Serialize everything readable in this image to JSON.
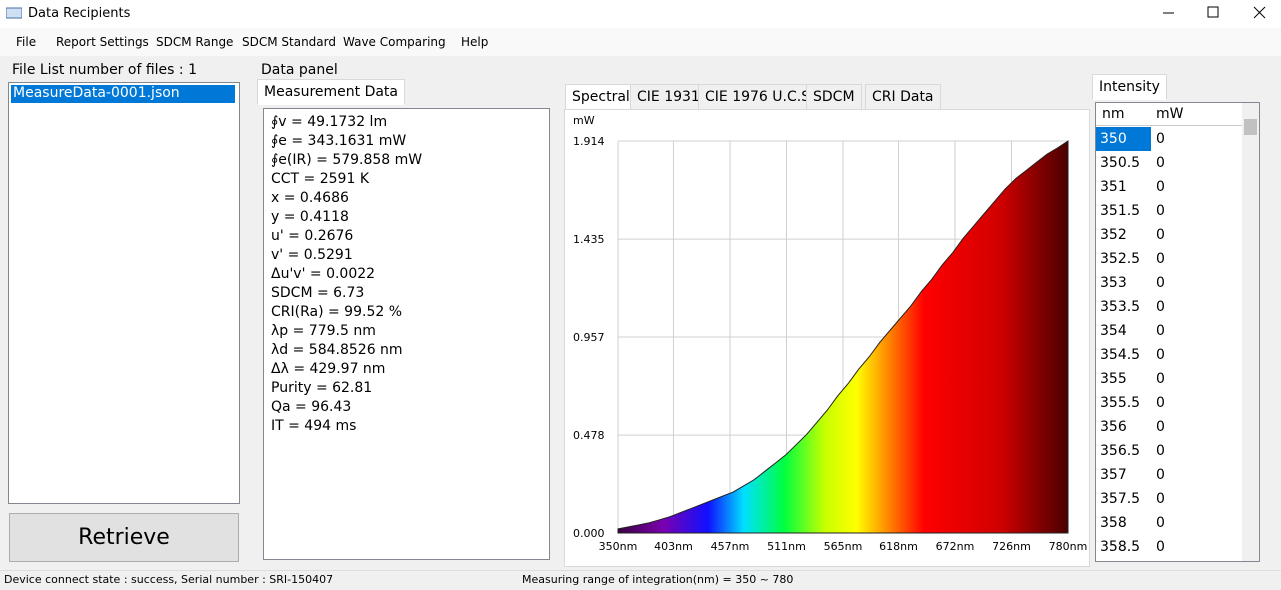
{
  "window": {
    "title": "Data Recipients"
  },
  "menu": [
    "File",
    "Report Settings",
    "SDCM Range",
    "SDCM Standard",
    "Wave Comparing",
    "Help"
  ],
  "file_list": {
    "title": "File List number of files : 1",
    "items": [
      "MeasureData-0001.json"
    ],
    "button": "Retrieve"
  },
  "data_panel": {
    "title": "Data panel",
    "tab": "Measurement Data",
    "lines": [
      "∮v = 49.1732 lm",
      "∮e = 343.1631 mW",
      "∮e(IR) = 579.858 mW",
      "CCT = 2591 K",
      "x = 0.4686",
      "y = 0.4118",
      "u' = 0.2676",
      "v' = 0.5291",
      "Δu'v' = 0.0022",
      "SDCM = 6.73",
      "CRI(Ra) = 99.52 %",
      "λp = 779.5 nm",
      "λd = 584.8526 nm",
      "Δλ = 429.97 nm",
      "Purity = 62.81",
      "Qa = 96.43",
      "IT = 494 ms"
    ]
  },
  "chart_tabs": [
    "Spectral",
    "CIE 1931",
    "CIE 1976 U.C.S",
    "SDCM",
    "CRI Data"
  ],
  "chart_data": {
    "type": "area",
    "y_label": "mW",
    "x": [
      350,
      360,
      370,
      380,
      390,
      400,
      410,
      420,
      430,
      440,
      450,
      460,
      470,
      480,
      490,
      500,
      510,
      520,
      530,
      540,
      550,
      560,
      570,
      580,
      590,
      600,
      610,
      620,
      630,
      640,
      650,
      660,
      670,
      680,
      690,
      700,
      710,
      720,
      730,
      740,
      750,
      760,
      770,
      780
    ],
    "values": [
      0.02,
      0.03,
      0.04,
      0.05,
      0.065,
      0.08,
      0.1,
      0.12,
      0.14,
      0.16,
      0.18,
      0.2,
      0.23,
      0.26,
      0.3,
      0.34,
      0.38,
      0.43,
      0.48,
      0.54,
      0.6,
      0.67,
      0.73,
      0.8,
      0.86,
      0.93,
      0.99,
      1.05,
      1.11,
      1.18,
      1.24,
      1.31,
      1.37,
      1.44,
      1.5,
      1.56,
      1.62,
      1.68,
      1.73,
      1.77,
      1.81,
      1.85,
      1.88,
      1.914
    ],
    "xlim": [
      350,
      780
    ],
    "ylim": [
      0,
      1.914
    ],
    "xticks": [
      {
        "value": 350,
        "label": "350nm"
      },
      {
        "value": 403,
        "label": "403nm"
      },
      {
        "value": 457,
        "label": "457nm"
      },
      {
        "value": 511,
        "label": "511nm"
      },
      {
        "value": 565,
        "label": "565nm"
      },
      {
        "value": 618,
        "label": "618nm"
      },
      {
        "value": 672,
        "label": "672nm"
      },
      {
        "value": 726,
        "label": "726nm"
      },
      {
        "value": 780,
        "label": "780nm"
      }
    ],
    "yticks": [
      {
        "value": 0,
        "label": "0.000"
      },
      0.478,
      0.957,
      1.435,
      1.914
    ],
    "grid": true
  },
  "intensity": {
    "tab": "Intensity",
    "columns": [
      "nm",
      "mW"
    ],
    "rows": [
      [
        350,
        0
      ],
      [
        350.5,
        0
      ],
      [
        351,
        0
      ],
      [
        351.5,
        0
      ],
      [
        352,
        0
      ],
      [
        352.5,
        0
      ],
      [
        353,
        0
      ],
      [
        353.5,
        0
      ],
      [
        354,
        0
      ],
      [
        354.5,
        0
      ],
      [
        355,
        0
      ],
      [
        355.5,
        0
      ],
      [
        356,
        0
      ],
      [
        356.5,
        0
      ],
      [
        357,
        0
      ],
      [
        357.5,
        0
      ],
      [
        358,
        0
      ],
      [
        358.5,
        0
      ]
    ]
  },
  "status": {
    "left": "Device connect state : success, Serial number : SRI-150407",
    "right": "Measuring range of integration(nm) = 350 ~ 780"
  }
}
